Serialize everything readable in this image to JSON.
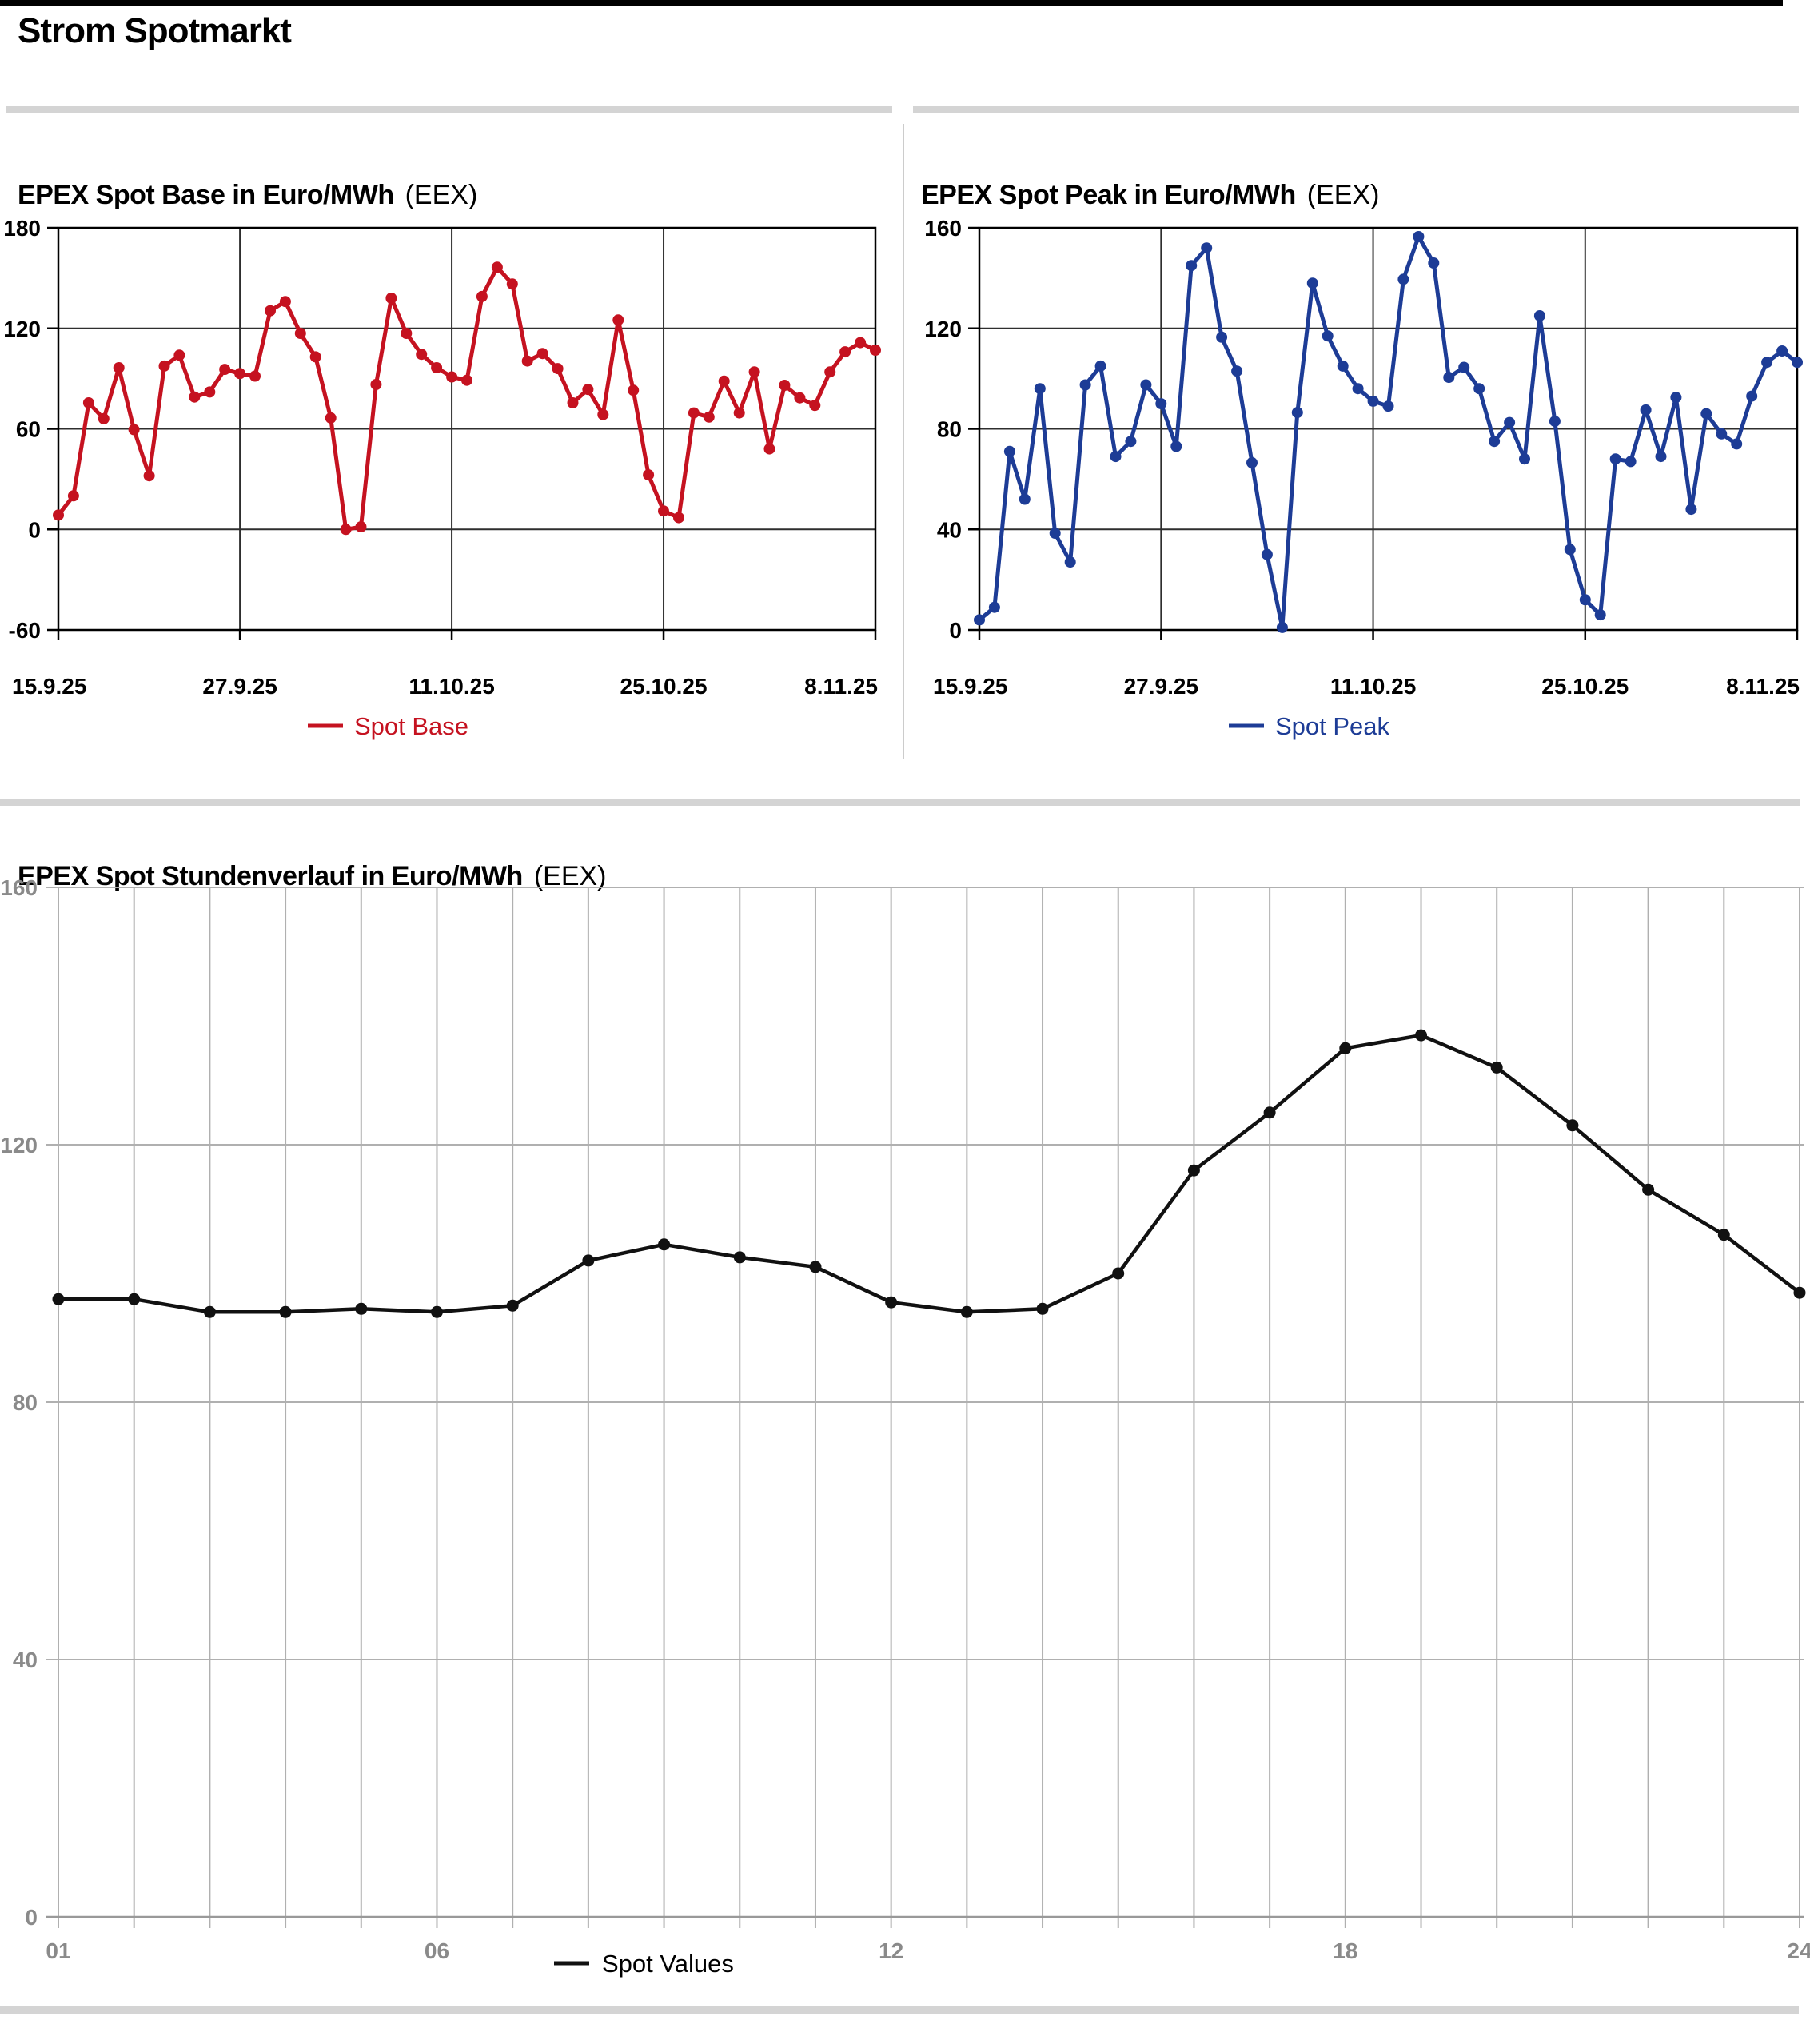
{
  "page": {
    "title": "Strom Spotmarkt"
  },
  "styles": {
    "accent_red": "#c51220",
    "accent_blue": "#1d3c96",
    "divider_gray": "#d4d4d4",
    "grid_gray": "#b0b0b0",
    "axis_label_gray": "#8a8a8a",
    "axis_black": "#000000"
  },
  "chart_data": [
    {
      "id": "base",
      "type": "line",
      "title": "EPEX Spot Base in Euro/MWh",
      "title_suffix": "(EEX)",
      "legend": "Spot Base",
      "color": "#c51220",
      "ylim": [
        -60,
        180
      ],
      "y_ticks": [
        180,
        120,
        60,
        0,
        -60
      ],
      "x_tick_labels": [
        "15.9.25",
        "27.9.25",
        "11.10.25",
        "25.10.25",
        "8.11.25"
      ],
      "x_tick_day_indices": [
        0,
        12,
        26,
        40,
        54
      ],
      "grid_day_indices": [
        12,
        26,
        40
      ],
      "grid": true,
      "legend_position": "bottom-center",
      "values": [
        8.5,
        20,
        75.5,
        66,
        96.5,
        59.5,
        32,
        97.5,
        104,
        79,
        82,
        95.5,
        93,
        91.5,
        130.5,
        136,
        117,
        103,
        66.5,
        0,
        1.5,
        86.5,
        138,
        117,
        104.5,
        96.5,
        91,
        89,
        139,
        156.5,
        146.5,
        100.5,
        105,
        96,
        75.5,
        83.5,
        68.5,
        125,
        83,
        32.5,
        11,
        7,
        69.5,
        67,
        88.5,
        69.5,
        94,
        48,
        86,
        78.5,
        74,
        94,
        106,
        111.5,
        107
      ]
    },
    {
      "id": "peak",
      "type": "line",
      "title": "EPEX Spot Peak in Euro/MWh",
      "title_suffix": "(EEX)",
      "legend": "Spot Peak",
      "color": "#1d3c96",
      "ylim": [
        0,
        160
      ],
      "y_ticks": [
        160,
        120,
        80,
        40,
        0
      ],
      "x_tick_labels": [
        "15.9.25",
        "27.9.25",
        "11.10.25",
        "25.10.25",
        "8.11.25"
      ],
      "x_tick_day_indices": [
        0,
        12,
        26,
        40,
        54
      ],
      "grid_day_indices": [
        12,
        26,
        40
      ],
      "grid": true,
      "legend_position": "bottom-center",
      "values": [
        4,
        9,
        71,
        52,
        96,
        38.5,
        27,
        97.5,
        105,
        69,
        75,
        97.5,
        90,
        73,
        145,
        152,
        116.5,
        103,
        66.5,
        30,
        1,
        86.5,
        138,
        117,
        105,
        96,
        91,
        89,
        139.5,
        156.5,
        146,
        100.5,
        104.5,
        96,
        75,
        82.5,
        68,
        125,
        83,
        32,
        12,
        6,
        68,
        67,
        87.5,
        69,
        92.5,
        48,
        86,
        78,
        74,
        93,
        106.5,
        111,
        106.5
      ]
    },
    {
      "id": "hours",
      "type": "line",
      "title": "EPEX Spot Stundenverlauf in Euro/MWh",
      "title_suffix": "(EEX)",
      "legend": "Spot Values",
      "color": "#111111",
      "ylim": [
        0,
        160
      ],
      "y_ticks": [
        160,
        120,
        80,
        40,
        0
      ],
      "x_tick_labels": [
        "01",
        "06",
        "12",
        "18",
        "24"
      ],
      "x_tick_hours": [
        1,
        6,
        12,
        18,
        24
      ],
      "hours": [
        1,
        2,
        3,
        4,
        5,
        6,
        7,
        8,
        9,
        10,
        11,
        12,
        13,
        14,
        15,
        16,
        17,
        18,
        19,
        20,
        21,
        22,
        23,
        24
      ],
      "grid": true,
      "legend_position": "bottom-center",
      "values": [
        96,
        96,
        94,
        94,
        94.5,
        94,
        95,
        102,
        104.5,
        102.5,
        101,
        95.5,
        94,
        94.5,
        100,
        116,
        125,
        135,
        137,
        132,
        123,
        113,
        106,
        97
      ]
    }
  ]
}
